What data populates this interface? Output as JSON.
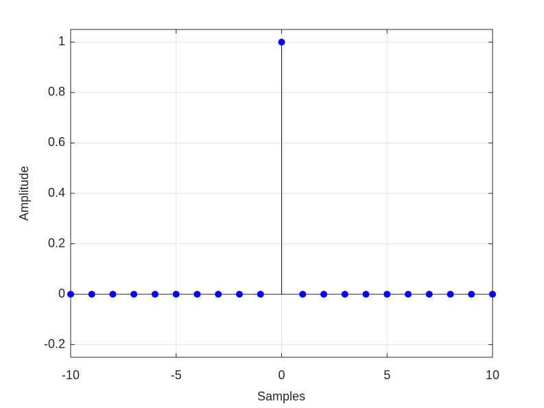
{
  "chart_data": {
    "type": "stem",
    "x": [
      -10,
      -9,
      -8,
      -7,
      -6,
      -5,
      -4,
      -3,
      -2,
      -1,
      0,
      1,
      2,
      3,
      4,
      5,
      6,
      7,
      8,
      9,
      10
    ],
    "values": [
      0,
      0,
      0,
      0,
      0,
      0,
      0,
      0,
      0,
      0,
      1,
      0,
      0,
      0,
      0,
      0,
      0,
      0,
      0,
      0,
      0
    ],
    "color": "#0000ff",
    "xlabel": "Samples",
    "ylabel": "Amplitude",
    "xlim": [
      -10,
      10
    ],
    "ylim": [
      -0.25,
      1.05
    ],
    "xticks": [
      -10,
      -5,
      0,
      5,
      10
    ],
    "yticks": [
      -0.2,
      0,
      0.2,
      0.4,
      0.6,
      0.8,
      1
    ],
    "grid": true
  }
}
